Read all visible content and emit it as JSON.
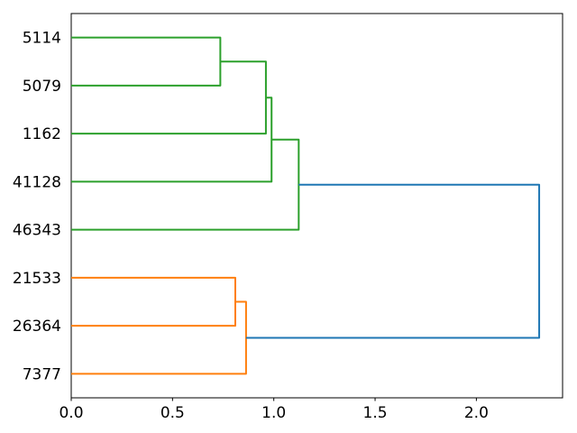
{
  "figure": {
    "background": "#ffffff",
    "title": ""
  },
  "chart_data": {
    "type": "dendrogram",
    "orientation": "horizontal-left-labels",
    "title": "",
    "xlabel": "",
    "ylabel": "",
    "grid": false,
    "legend": null,
    "leaves": [
      "5114",
      "5079",
      "1162",
      "41128",
      "46343",
      "21533",
      "26364",
      "7377"
    ],
    "links": [
      {
        "id": "g1",
        "children": [
          "5114",
          "5079"
        ],
        "distance": 0.736,
        "color_key": "green"
      },
      {
        "id": "g2",
        "children": [
          "g1",
          "1162"
        ],
        "distance": 0.961,
        "color_key": "green"
      },
      {
        "id": "g3",
        "children": [
          "g2",
          "41128"
        ],
        "distance": 0.989,
        "color_key": "green"
      },
      {
        "id": "g4",
        "children": [
          "g3",
          "46343"
        ],
        "distance": 1.123,
        "color_key": "green"
      },
      {
        "id": "o1",
        "children": [
          "21533",
          "26364"
        ],
        "distance": 0.81,
        "color_key": "orange"
      },
      {
        "id": "o2",
        "children": [
          "o1",
          "7377"
        ],
        "distance": 0.863,
        "color_key": "orange"
      },
      {
        "id": "root",
        "children": [
          "g4",
          "o2"
        ],
        "distance": 2.31,
        "color_key": "blue"
      }
    ],
    "colors": {
      "green": "#2ca02c",
      "orange": "#ff7f0e",
      "blue": "#1f77b4",
      "axis": "#000000",
      "text": "#000000"
    },
    "x_axis": {
      "range": [
        0,
        2.4255
      ],
      "ticks": [
        {
          "value": 0.0,
          "label": "0.0"
        },
        {
          "value": 0.5,
          "label": "0.5"
        },
        {
          "value": 1.0,
          "label": "1.0"
        },
        {
          "value": 1.5,
          "label": "1.5"
        },
        {
          "value": 2.0,
          "label": "2.0"
        }
      ]
    },
    "y_axis": {
      "labels_position": "left",
      "tick_marks": false
    }
  }
}
